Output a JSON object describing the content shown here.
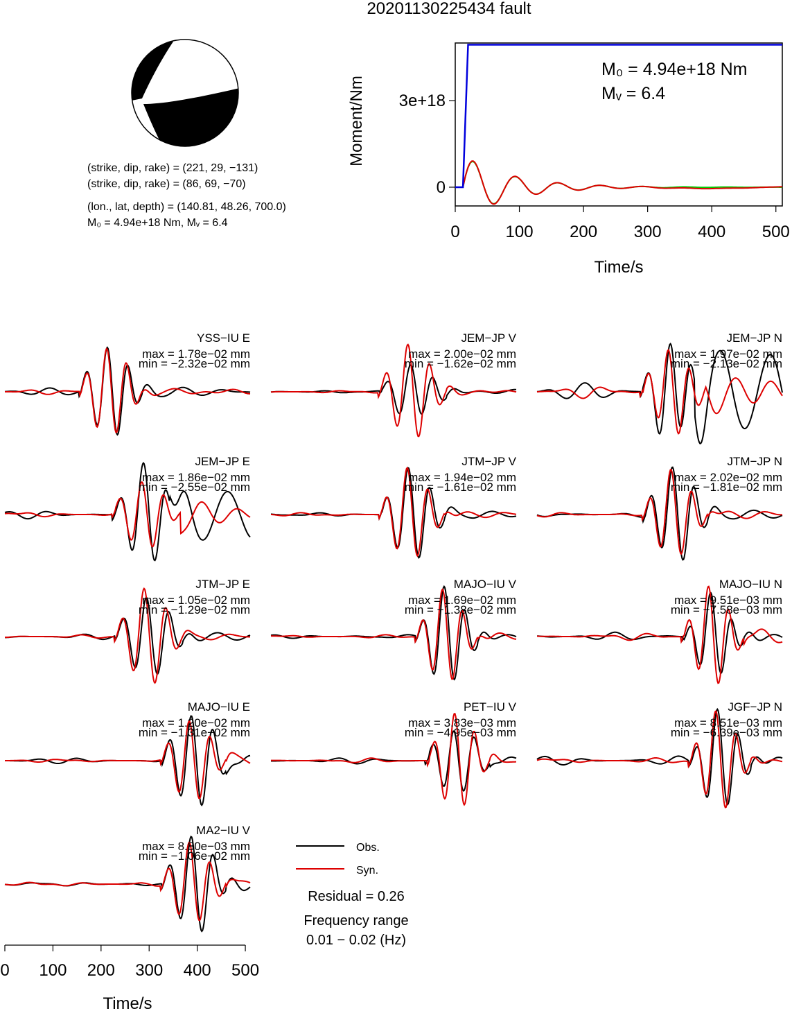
{
  "title": "20201130225434 fault",
  "mechanism": {
    "plane1": "(strike, dip, rake) = (221, 29, −131)",
    "plane2": "(strike, dip, rake) = (86, 69, −70)",
    "location": "(lon., lat, depth) = (140.81, 48.26, 700.0)",
    "moment": "M₀ = 4.94e+18 Nm, Mᵥ = 6.4"
  },
  "colors": {
    "observed": "#000000",
    "synthetic": "#dd0000",
    "moment": "#0000dd",
    "moment_rate_b": "#00cc00"
  },
  "chart_data": [
    {
      "type": "line",
      "name": "moment-function",
      "xlabel": "Time/s",
      "ylabel": "Moment/Nm",
      "xlim": [
        0,
        510
      ],
      "ylim": [
        -6.5e+17,
        5e+18
      ],
      "xticks": [
        0,
        100,
        200,
        300,
        400,
        500
      ],
      "yticks": [
        0,
        3e+18
      ],
      "ytick_labels": [
        "0",
        "3e+18"
      ],
      "annotation": {
        "m0": "M₀ = 4.94e+18 Nm",
        "mw": "Mᵥ = 6.4"
      },
      "cumulative_moment": {
        "x": [
          0,
          12,
          20,
          510
        ],
        "y": [
          0,
          0,
          4.94e+18,
          4.94e+18
        ]
      },
      "moment_rate_source": {
        "amplitude": 1.1e+18,
        "start": 12,
        "period": 66,
        "decay": 75
      }
    },
    {
      "type": "line",
      "name": "waveform-comparison",
      "xlabel": "Time/s",
      "xlim": [
        0,
        510
      ],
      "xticks": [
        0,
        100,
        200,
        300,
        400,
        500
      ],
      "legend": {
        "observed": "Obs.",
        "synthetic": "Syn."
      },
      "residual": "Residual = 0.26",
      "frequency_label": "Frequency range",
      "frequency_value": "0.01 − 0.02 (Hz)",
      "panels": [
        {
          "station": "YSS−IU E",
          "max": "max = 1.78e−02 mm",
          "min": "min = −2.32e−02 mm",
          "arrival": 180,
          "period": 42,
          "obs_amp": 0.95,
          "syn_amp": 0.95,
          "obs_shift": 0,
          "pre_noise": 0.08,
          "post_noise": 0.05,
          "obs_extra": 0
        },
        {
          "station": "JEM−JP V",
          "max": "max = 2.00e−02 mm",
          "min": "min = −1.62e−02 mm",
          "arrival": 250,
          "period": 46,
          "obs_amp": 0.55,
          "syn_amp": 1.0,
          "obs_shift": 4,
          "pre_noise": 0.05,
          "post_noise": 0.05,
          "obs_extra": 0
        },
        {
          "station": "JEM−JP N",
          "max": "max = 1.97e−02 mm",
          "min": "min = −2.13e−02 mm",
          "arrival": 240,
          "period": 44,
          "obs_amp": 1.0,
          "syn_amp": 0.9,
          "obs_shift": 2,
          "pre_noise": 0.2,
          "post_noise": 0.7,
          "obs_extra": 1
        },
        {
          "station": "JEM−JP E",
          "max": "max = 1.86e−02 mm",
          "min": "min = −2.55e−02 mm",
          "arrival": 250,
          "period": 46,
          "obs_amp": 1.0,
          "syn_amp": 0.7,
          "obs_shift": 2,
          "pre_noise": 0.1,
          "post_noise": 0.45,
          "obs_extra": 1
        },
        {
          "station": "JTM−JP V",
          "max": "max = 1.94e−02 mm",
          "min": "min = −1.61e−02 mm",
          "arrival": 250,
          "period": 44,
          "obs_amp": 0.97,
          "syn_amp": 0.95,
          "obs_shift": 1,
          "pre_noise": 0.06,
          "post_noise": 0.05,
          "obs_extra": 0
        },
        {
          "station": "JTM−JP N",
          "max": "max = 2.02e−02 mm",
          "min": "min = −1.81e−02 mm",
          "arrival": 245,
          "period": 44,
          "obs_amp": 1.0,
          "syn_amp": 0.9,
          "obs_shift": 2,
          "pre_noise": 0.08,
          "post_noise": 0.06,
          "obs_extra": 0
        },
        {
          "station": "JTM−JP E",
          "max": "max = 1.05e−02 mm",
          "min": "min = −1.29e−02 mm",
          "arrival": 255,
          "period": 46,
          "obs_amp": 0.85,
          "syn_amp": 1.0,
          "obs_shift": 3,
          "pre_noise": 0.06,
          "post_noise": 0.05,
          "obs_extra": 0
        },
        {
          "station": "MAJO−IU V",
          "max": "max = 1.69e−02 mm",
          "min": "min = −1.38e−02 mm",
          "arrival": 325,
          "period": 42,
          "obs_amp": 1.0,
          "syn_amp": 0.95,
          "obs_shift": 2,
          "pre_noise": 0.06,
          "post_noise": 0.08,
          "obs_extra": 0
        },
        {
          "station": "MAJO−IU N",
          "max": "max = 9.51e−03 mm",
          "min": "min = −7.58e−03 mm",
          "arrival": 325,
          "period": 42,
          "obs_amp": 0.8,
          "syn_amp": 1.0,
          "obs_shift": 3,
          "pre_noise": 0.12,
          "post_noise": 0.15,
          "obs_extra": 0
        },
        {
          "station": "MAJO−IU E",
          "max": "max = 1.20e−02 mm",
          "min": "min = −1.31e−02 mm",
          "arrival": 350,
          "period": 44,
          "obs_amp": 1.0,
          "syn_amp": 0.85,
          "obs_shift": 3,
          "pre_noise": 0.06,
          "post_noise": 0.2,
          "obs_extra": 0
        },
        {
          "station": "PET−IU V",
          "max": "max = 3.83e−03 mm",
          "min": "min = −4.95e−03 mm",
          "arrival": 350,
          "period": 42,
          "obs_amp": 0.7,
          "syn_amp": 1.0,
          "obs_shift": -3,
          "pre_noise": 0.08,
          "post_noise": 0.1,
          "obs_extra": 0
        },
        {
          "station": "JGF−JP N",
          "max": "max = 8.51e−03 mm",
          "min": "min = −6.39e−03 mm",
          "arrival": 340,
          "period": 42,
          "obs_amp": 1.0,
          "syn_amp": 1.0,
          "obs_shift": 2,
          "pre_noise": 0.1,
          "post_noise": 0.1,
          "obs_extra": 0
        },
        {
          "station": "MA2−IU V",
          "max": "max = 8.80e−03 mm",
          "min": "min = −1.06e−02 mm",
          "arrival": 350,
          "period": 44,
          "obs_amp": 1.0,
          "syn_amp": 0.85,
          "obs_shift": 3,
          "pre_noise": 0.08,
          "post_noise": 0.1,
          "obs_extra": 0
        }
      ]
    }
  ]
}
